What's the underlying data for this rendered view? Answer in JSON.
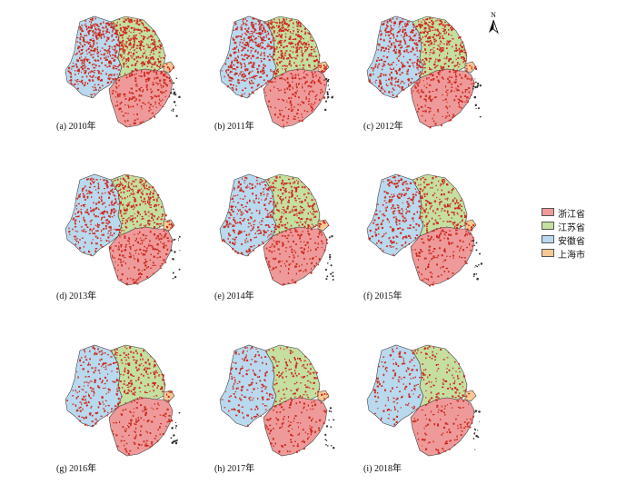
{
  "figure": {
    "panels": [
      {
        "label": "(a) 2010年",
        "year": 2010
      },
      {
        "label": "(b) 2011年",
        "year": 2011
      },
      {
        "label": "(c) 2012年",
        "year": 2012
      },
      {
        "label": "(d) 2013年",
        "year": 2013
      },
      {
        "label": "(e) 2014年",
        "year": 2014
      },
      {
        "label": "(f) 2015年",
        "year": 2015
      },
      {
        "label": "(g) 2016年",
        "year": 2016
      },
      {
        "label": "(h) 2017年",
        "year": 2017
      },
      {
        "label": "(i) 2018年",
        "year": 2018
      }
    ],
    "north_arrow_letter": "N",
    "legend": [
      {
        "label": "浙江省",
        "color": "#ef9a9a"
      },
      {
        "label": "江苏省",
        "color": "#c5dfa0"
      },
      {
        "label": "安徽省",
        "color": "#b9d9ee"
      },
      {
        "label": "上海市",
        "color": "#f7c995"
      }
    ],
    "dot_color": "#cc2a1f"
  }
}
